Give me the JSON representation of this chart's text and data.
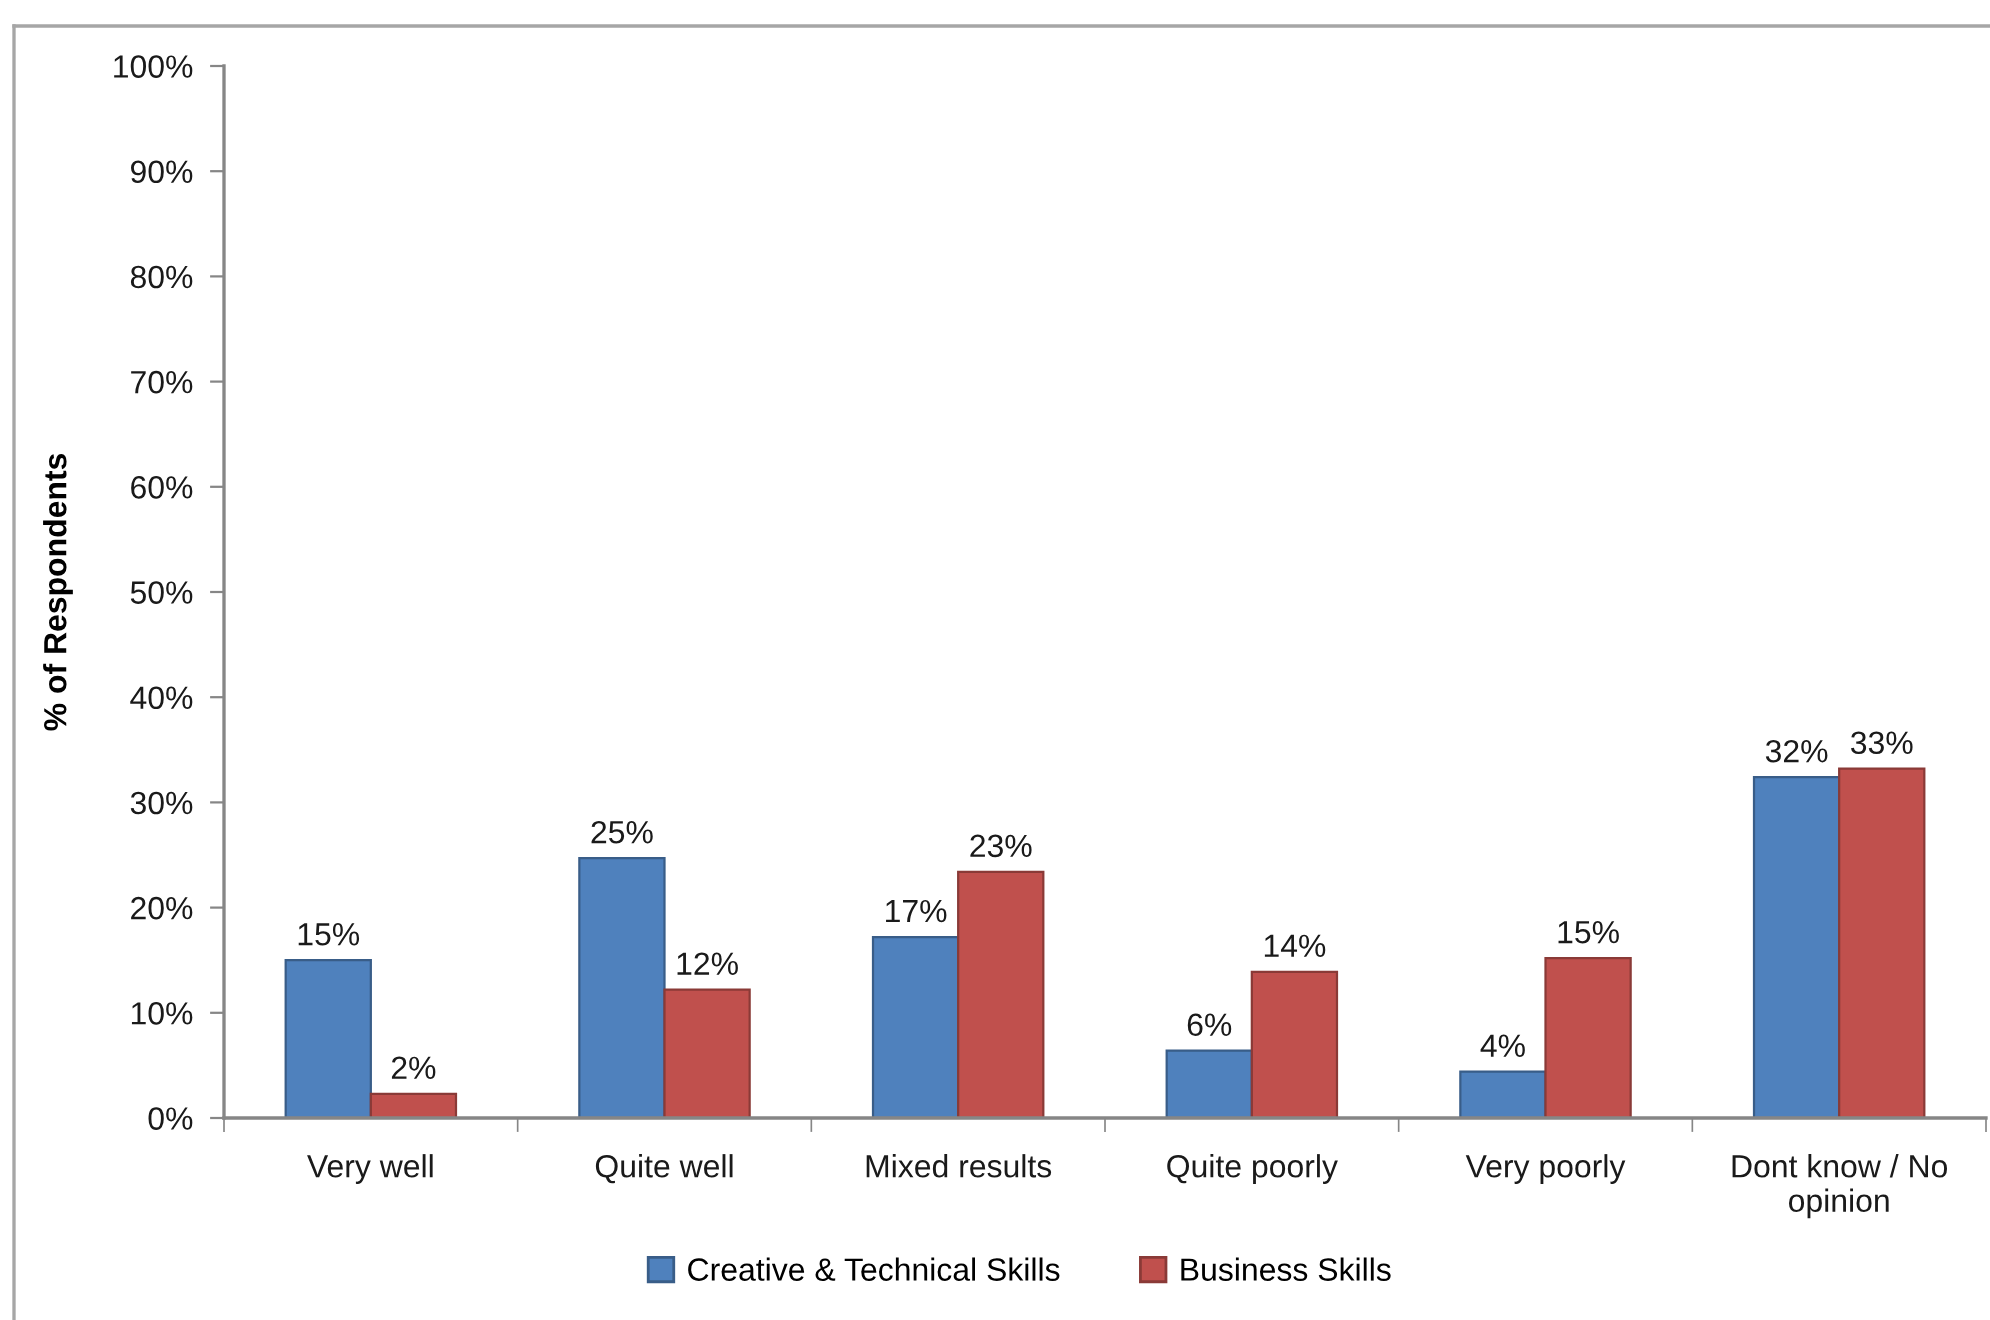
{
  "chart_data": {
    "type": "bar",
    "ylabel": "% of Respondents",
    "categories": [
      "Very well",
      "Quite well",
      "Mixed results",
      "Quite poorly",
      "Very poorly",
      "Dont know / No opinion"
    ],
    "series": [
      {
        "name": "Creative & Technical Skills",
        "color": "#4f81bd",
        "values": [
          15.0,
          24.7,
          17.2,
          6.4,
          4.4,
          32.4
        ],
        "value_labels": [
          "15%",
          "25%",
          "17%",
          "6%",
          "4%",
          "32%"
        ]
      },
      {
        "name": "Business Skills",
        "color": "#c0504d",
        "values": [
          2.3,
          12.2,
          23.4,
          13.9,
          15.2,
          33.2
        ],
        "value_labels": [
          "2%",
          "12%",
          "23%",
          "14%",
          "15%",
          "33%"
        ]
      }
    ],
    "ylim": [
      0,
      100
    ],
    "yticks": [
      {
        "value": 0,
        "label": "0%"
      },
      {
        "value": 10,
        "label": "10%"
      },
      {
        "value": 20,
        "label": "20%"
      },
      {
        "value": 30,
        "label": "30%"
      },
      {
        "value": 40,
        "label": "40%"
      },
      {
        "value": 50,
        "label": "50%"
      },
      {
        "value": 60,
        "label": "60%"
      },
      {
        "value": 70,
        "label": "70%"
      },
      {
        "value": 80,
        "label": "80%"
      },
      {
        "value": 90,
        "label": "90%"
      },
      {
        "value": 100,
        "label": "100%"
      }
    ],
    "grid": false,
    "legend": "bottom"
  }
}
